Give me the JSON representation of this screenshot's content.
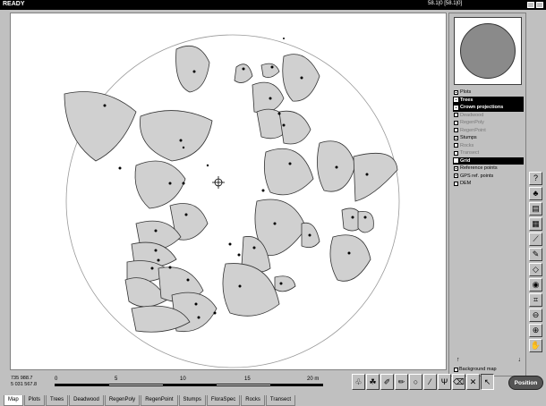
{
  "window": {
    "title": "READY",
    "coords": "58.1|0 [58.1|0]"
  },
  "layers": [
    {
      "label": "Plots",
      "checked": true,
      "style": "normal"
    },
    {
      "label": "Trees",
      "checked": true,
      "style": "selected"
    },
    {
      "label": "Crown projections",
      "checked": true,
      "style": "selected"
    },
    {
      "label": "Deadwood",
      "checked": false,
      "style": "dim"
    },
    {
      "label": "RegenPoly",
      "checked": false,
      "style": "dim"
    },
    {
      "label": "RegenPoint",
      "checked": false,
      "style": "dim"
    },
    {
      "label": "Stumps",
      "checked": true,
      "style": "normal"
    },
    {
      "label": "Rocks",
      "checked": false,
      "style": "dim"
    },
    {
      "label": "Transect",
      "checked": false,
      "style": "dim"
    },
    {
      "label": "Grid",
      "checked": false,
      "style": "selected"
    },
    {
      "label": "Reference points",
      "checked": true,
      "style": "normal"
    },
    {
      "label": "GPS ref. points",
      "checked": true,
      "style": "normal"
    },
    {
      "label": "DEM",
      "checked": false,
      "style": "normal"
    }
  ],
  "background_map": {
    "label": "Background map"
  },
  "vertical_tools": [
    "help-icon",
    "tree-icon",
    "table-icon",
    "grid-icon",
    "measure-icon",
    "pencil-icon",
    "cursor-icon",
    "target-icon",
    "extent-icon",
    "zoom-out-icon",
    "zoom-in-icon",
    "hand-icon"
  ],
  "toolbar_tools": [
    "tree-tool-icon",
    "crown-tool-icon",
    "brush-tool-icon",
    "pencil-tool-icon",
    "circle-tool-icon",
    "line-tool-icon",
    "branch-tool-icon",
    "erase-tool-icon",
    "cross-tool-icon",
    "pointer-tool-icon"
  ],
  "position_button": {
    "label": "Position"
  },
  "status": {
    "x": "735 988.7",
    "y": "5 031 567.8",
    "scale_ticks": [
      "0",
      "5",
      "10",
      "15",
      "20 m"
    ]
  },
  "tabs": [
    "Map",
    "Plots",
    "Trees",
    "Deadwood",
    "RegenPoly",
    "RegenPoint",
    "Stumps",
    "FloraSpec",
    "Rocks",
    "Transect"
  ],
  "active_tab": 0
}
